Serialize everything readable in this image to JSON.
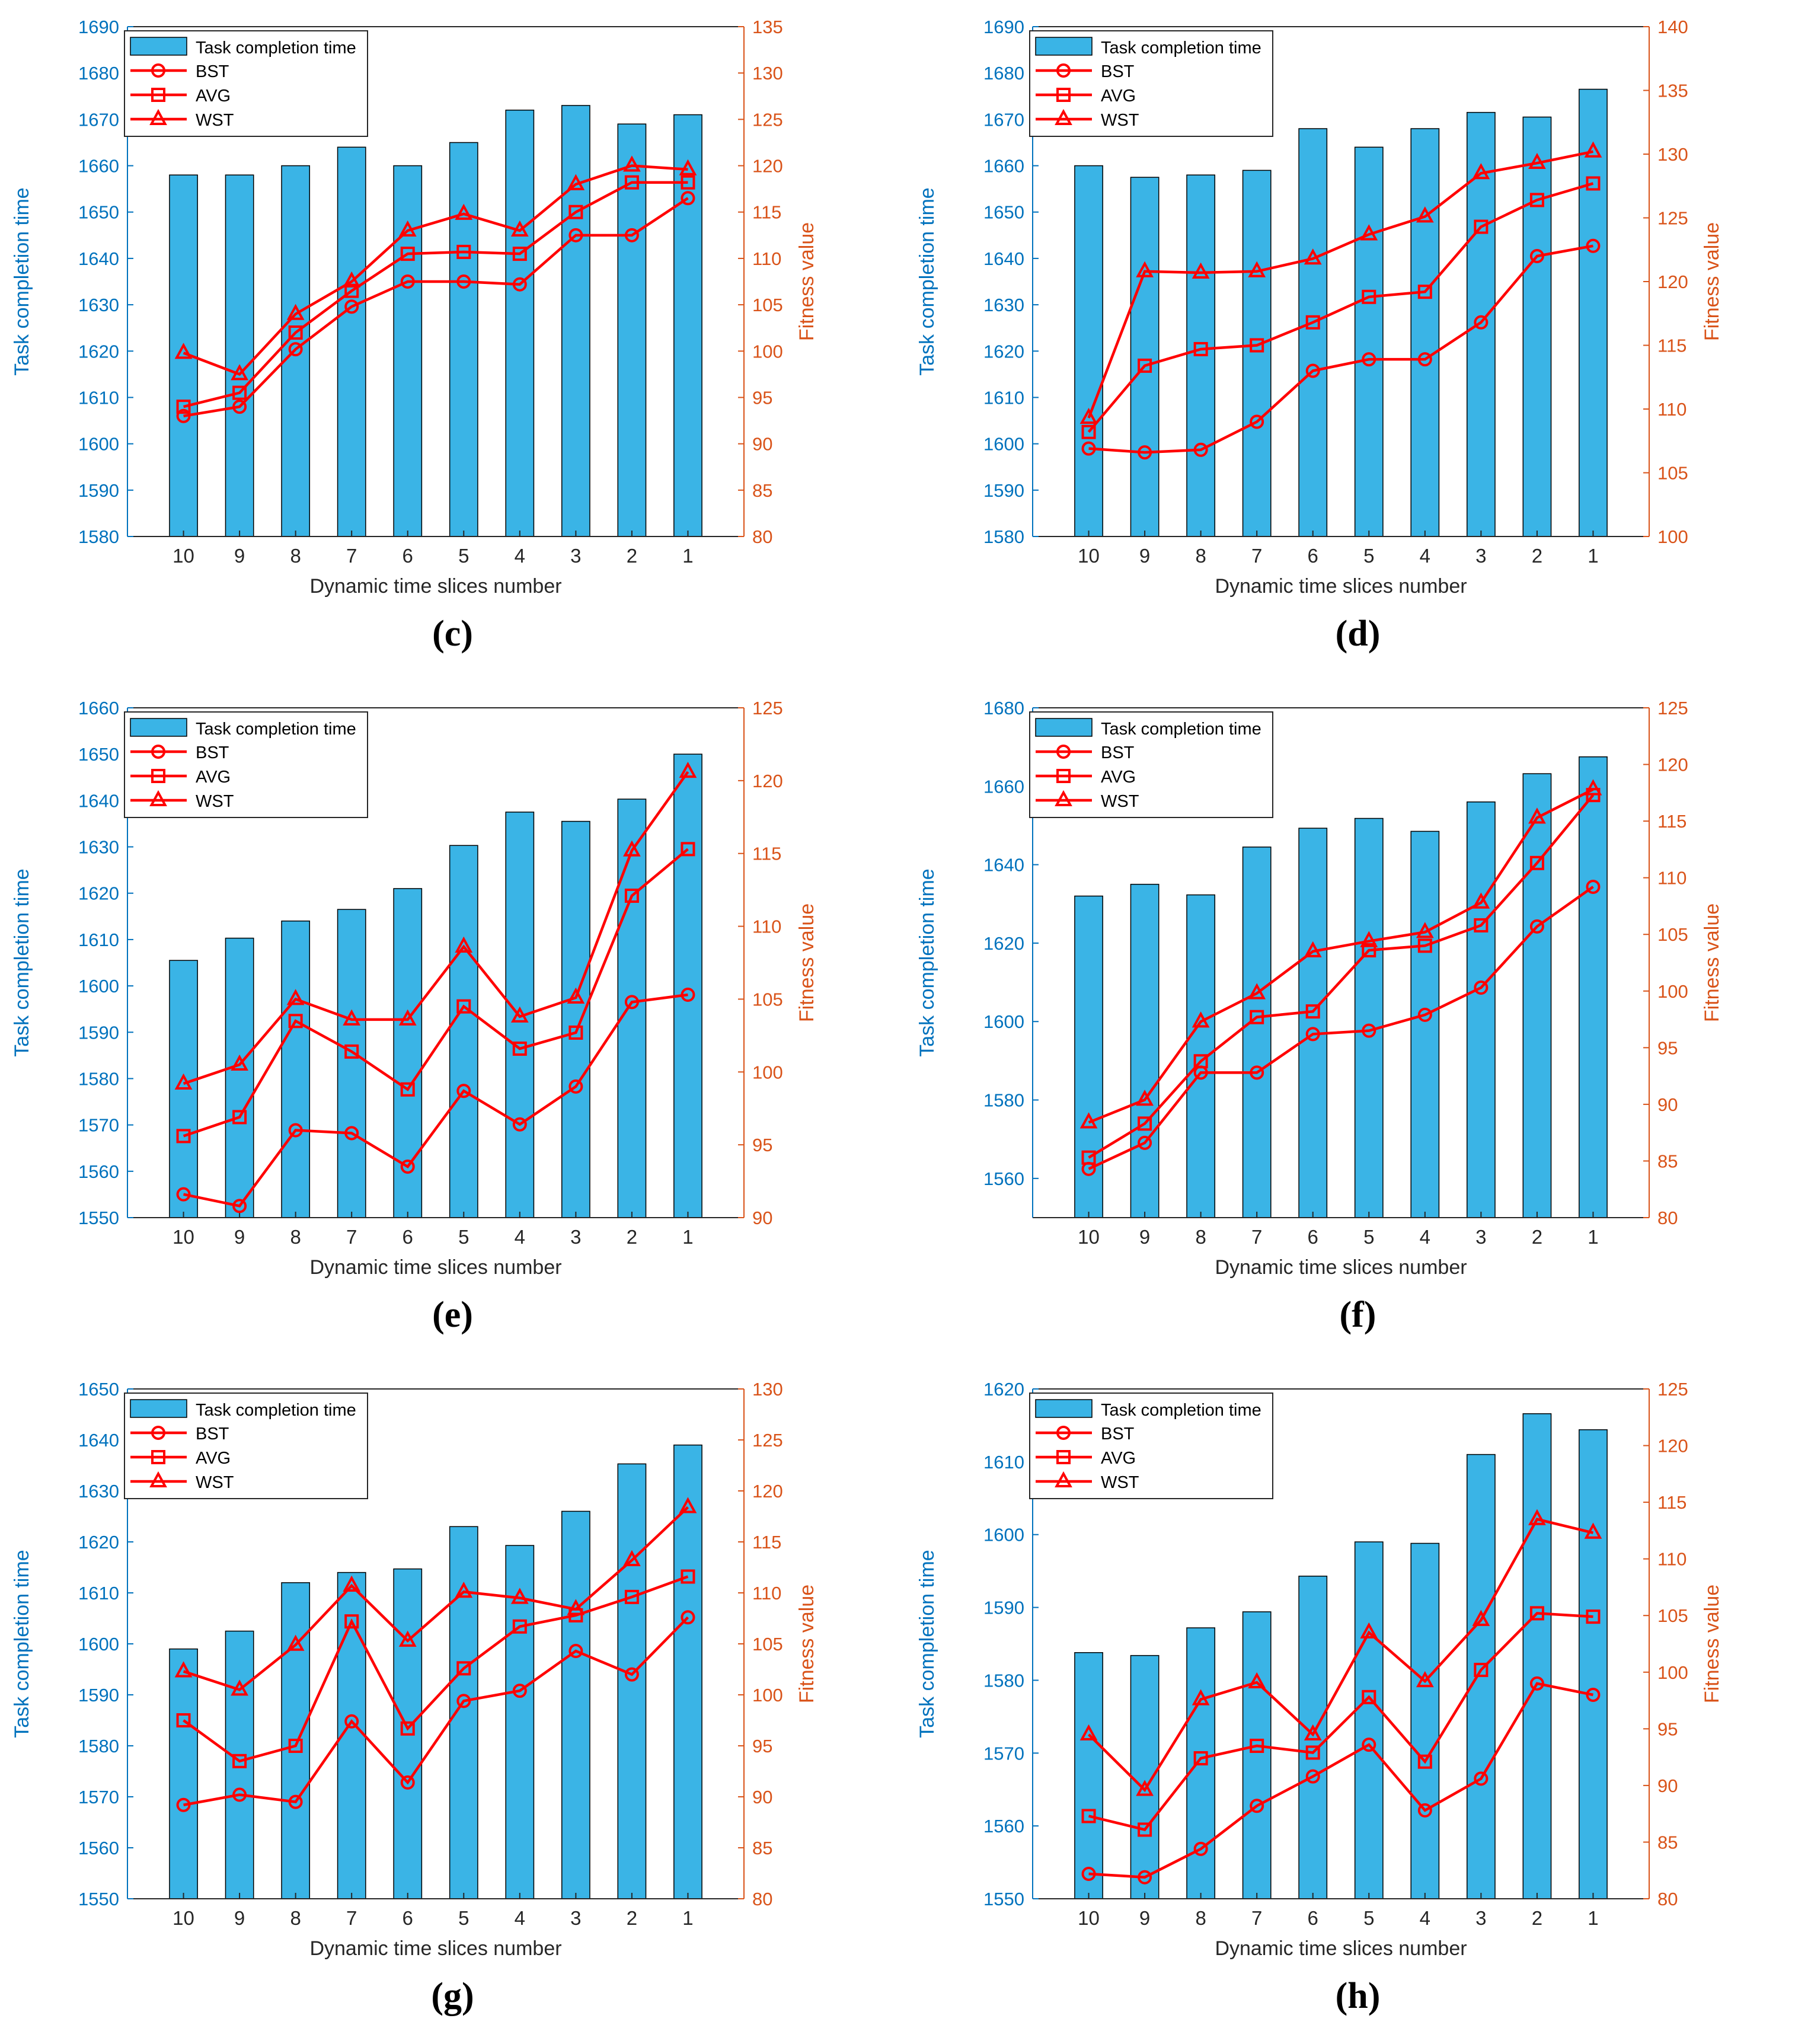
{
  "colors": {
    "bar": "#3ab4e6",
    "bar_edge": "#000000",
    "line": "#ff0000",
    "left_axis": "#0072bd",
    "right_axis": "#d95319"
  },
  "icons": {
    "BST": "circle-marker",
    "AVG": "square-marker",
    "WST": "triangle-marker"
  },
  "chart_data": [
    {
      "panel_label": "(c)",
      "type": "bar",
      "title": "",
      "xlabel": "Dynamic time slices number",
      "ylabel_left": "Task completion time",
      "ylabel_right": "Fitness value",
      "categories": [
        "10",
        "9",
        "8",
        "7",
        "6",
        "5",
        "4",
        "3",
        "2",
        "1"
      ],
      "ylim_left": [
        1580,
        1690
      ],
      "yticks_left": [
        1580,
        1590,
        1600,
        1610,
        1620,
        1630,
        1640,
        1650,
        1660,
        1670,
        1680,
        1690
      ],
      "ylim_right": [
        80,
        135
      ],
      "yticks_right": [
        80,
        85,
        90,
        95,
        100,
        105,
        110,
        115,
        120,
        125,
        130,
        135
      ],
      "legend": [
        "Task completion time",
        "BST",
        "AVG",
        "WST"
      ],
      "bars": {
        "name": "Task completion time",
        "values": [
          1658,
          1658,
          1660,
          1664,
          1660,
          1665,
          1672,
          1673,
          1669,
          1671
        ]
      },
      "series": [
        {
          "name": "BST",
          "marker": "circle",
          "values": [
            93,
            94,
            100.2,
            104.8,
            107.5,
            107.5,
            107.2,
            112.5,
            112.5,
            116.5
          ]
        },
        {
          "name": "AVG",
          "marker": "square",
          "values": [
            94,
            95.5,
            102,
            106.5,
            110.5,
            110.7,
            110.5,
            115,
            118.2,
            118.2
          ]
        },
        {
          "name": "WST",
          "marker": "triangle",
          "values": [
            99.8,
            97.5,
            104,
            107.5,
            113,
            114.8,
            113,
            118,
            120,
            119.6
          ]
        }
      ]
    },
    {
      "panel_label": "(d)",
      "type": "bar",
      "title": "",
      "xlabel": "Dynamic time slices number",
      "ylabel_left": "Task completion time",
      "ylabel_right": "Fitness value",
      "categories": [
        "10",
        "9",
        "8",
        "7",
        "6",
        "5",
        "4",
        "3",
        "2",
        "1"
      ],
      "ylim_left": [
        1580,
        1690
      ],
      "yticks_left": [
        1580,
        1590,
        1600,
        1610,
        1620,
        1630,
        1640,
        1650,
        1660,
        1670,
        1680,
        1690
      ],
      "ylim_right": [
        100,
        140
      ],
      "yticks_right": [
        100,
        105,
        110,
        115,
        120,
        125,
        130,
        135,
        140
      ],
      "legend": [
        "Task completion time",
        "BST",
        "AVG",
        "WST"
      ],
      "bars": {
        "name": "Task completion time",
        "values": [
          1660,
          1657.5,
          1658,
          1659,
          1668,
          1664,
          1668,
          1671.5,
          1670.5,
          1676.5
        ]
      },
      "series": [
        {
          "name": "BST",
          "marker": "circle",
          "values": [
            106.9,
            106.6,
            106.8,
            109,
            113,
            113.9,
            113.9,
            116.8,
            122,
            122.8
          ]
        },
        {
          "name": "AVG",
          "marker": "square",
          "values": [
            108.2,
            113.4,
            114.7,
            115,
            116.8,
            118.8,
            119.2,
            124.3,
            126.4,
            127.7
          ]
        },
        {
          "name": "WST",
          "marker": "triangle",
          "values": [
            109.3,
            120.8,
            120.7,
            120.8,
            121.8,
            123.7,
            125.1,
            128.5,
            129.3,
            130.2
          ]
        }
      ]
    },
    {
      "panel_label": "(e)",
      "type": "bar",
      "title": "",
      "xlabel": "Dynamic time slices number",
      "ylabel_left": "Task completion time",
      "ylabel_right": "Fitness value",
      "categories": [
        "10",
        "9",
        "8",
        "7",
        "6",
        "5",
        "4",
        "3",
        "2",
        "1"
      ],
      "ylim_left": [
        1550,
        1660
      ],
      "yticks_left": [
        1550,
        1560,
        1570,
        1580,
        1590,
        1600,
        1610,
        1620,
        1630,
        1640,
        1650,
        1660
      ],
      "ylim_right": [
        90,
        125
      ],
      "yticks_right": [
        90,
        95,
        100,
        105,
        110,
        115,
        120,
        125
      ],
      "legend": [
        "Task completion time",
        "BST",
        "AVG",
        "WST"
      ],
      "bars": {
        "name": "Task completion time",
        "values": [
          1605.5,
          1610.3,
          1614,
          1616.5,
          1621,
          1630.3,
          1637.5,
          1635.5,
          1640.3,
          1650
        ]
      },
      "series": [
        {
          "name": "BST",
          "marker": "circle",
          "values": [
            91.6,
            90.8,
            96,
            95.8,
            93.5,
            98.7,
            96.4,
            99,
            104.8,
            105.3
          ]
        },
        {
          "name": "AVG",
          "marker": "square",
          "values": [
            95.6,
            96.9,
            103.5,
            101.4,
            98.8,
            104.5,
            101.6,
            102.7,
            112.1,
            115.3
          ]
        },
        {
          "name": "WST",
          "marker": "triangle",
          "values": [
            99.2,
            100.5,
            105,
            103.6,
            103.6,
            108.6,
            103.8,
            105.1,
            115.2,
            120.6
          ]
        }
      ]
    },
    {
      "panel_label": "(f)",
      "type": "bar",
      "title": "",
      "xlabel": "Dynamic time slices number",
      "ylabel_left": "Task completion time",
      "ylabel_right": "Fitness value",
      "categories": [
        "10",
        "9",
        "8",
        "7",
        "6",
        "5",
        "4",
        "3",
        "2",
        "1"
      ],
      "ylim_left": [
        1550,
        1680
      ],
      "yticks_left": [
        1560,
        1580,
        1600,
        1620,
        1640,
        1660,
        1680
      ],
      "ylim_right": [
        80,
        125
      ],
      "yticks_right": [
        80,
        85,
        90,
        95,
        100,
        105,
        110,
        115,
        120,
        125
      ],
      "legend": [
        "Task completion time",
        "BST",
        "AVG",
        "WST"
      ],
      "bars": {
        "name": "Task completion time",
        "values": [
          1632,
          1635,
          1632.3,
          1644.5,
          1649.3,
          1651.8,
          1648.5,
          1656,
          1663.2,
          1667.5
        ]
      },
      "series": [
        {
          "name": "BST",
          "marker": "circle",
          "values": [
            84.3,
            86.6,
            92.8,
            92.8,
            96.2,
            96.5,
            97.9,
            100.3,
            105.7,
            109.2
          ]
        },
        {
          "name": "AVG",
          "marker": "square",
          "values": [
            85.3,
            88.3,
            93.8,
            97.7,
            98.2,
            103.6,
            104,
            105.8,
            111.3,
            117.3
          ]
        },
        {
          "name": "WST",
          "marker": "triangle",
          "values": [
            88.4,
            90.4,
            97.3,
            99.8,
            103.5,
            104.4,
            105.2,
            107.8,
            115.3,
            117.8
          ]
        }
      ]
    },
    {
      "panel_label": "(g)",
      "type": "bar",
      "title": "",
      "xlabel": "Dynamic time slices number",
      "ylabel_left": "Task completion time",
      "ylabel_right": "Fitness value",
      "categories": [
        "10",
        "9",
        "8",
        "7",
        "6",
        "5",
        "4",
        "3",
        "2",
        "1"
      ],
      "ylim_left": [
        1550,
        1650
      ],
      "yticks_left": [
        1550,
        1560,
        1570,
        1580,
        1590,
        1600,
        1610,
        1620,
        1630,
        1640,
        1650
      ],
      "ylim_right": [
        80,
        130
      ],
      "yticks_right": [
        80,
        85,
        90,
        95,
        100,
        105,
        110,
        115,
        120,
        125,
        130
      ],
      "legend": [
        "Task completion time",
        "BST",
        "AVG",
        "WST"
      ],
      "bars": {
        "name": "Task completion time",
        "values": [
          1599,
          1602.5,
          1612,
          1614,
          1614.7,
          1623,
          1619.3,
          1626,
          1635.3,
          1639
        ]
      },
      "series": [
        {
          "name": "BST",
          "marker": "circle",
          "values": [
            89.2,
            90.2,
            89.5,
            97.4,
            91.4,
            99.4,
            100.4,
            104.3,
            102,
            107.6
          ]
        },
        {
          "name": "AVG",
          "marker": "square",
          "values": [
            97.5,
            93.5,
            95,
            107.2,
            96.7,
            102.6,
            106.7,
            107.8,
            109.6,
            111.6
          ]
        },
        {
          "name": "WST",
          "marker": "triangle",
          "values": [
            102.3,
            100.5,
            104.9,
            110.7,
            105.3,
            110.1,
            109.5,
            108.4,
            113.2,
            118.4
          ]
        }
      ]
    },
    {
      "panel_label": "(h)",
      "type": "bar",
      "title": "",
      "xlabel": "Dynamic time slices number",
      "ylabel_left": "Task completion time",
      "ylabel_right": "Fitness value",
      "categories": [
        "10",
        "9",
        "8",
        "7",
        "6",
        "5",
        "4",
        "3",
        "2",
        "1"
      ],
      "ylim_left": [
        1550,
        1620
      ],
      "yticks_left": [
        1550,
        1560,
        1570,
        1580,
        1590,
        1600,
        1610,
        1620
      ],
      "ylim_right": [
        80,
        125
      ],
      "yticks_right": [
        80,
        85,
        90,
        95,
        100,
        105,
        110,
        115,
        120,
        125
      ],
      "legend": [
        "Task completion time",
        "BST",
        "AVG",
        "WST"
      ],
      "bars": {
        "name": "Task completion time",
        "values": [
          1583.8,
          1583.4,
          1587.2,
          1589.4,
          1594.3,
          1599,
          1598.8,
          1611,
          1616.6,
          1614.4
        ]
      },
      "series": [
        {
          "name": "BST",
          "marker": "circle",
          "values": [
            82.2,
            81.9,
            84.4,
            88.2,
            90.8,
            93.6,
            87.8,
            90.6,
            99,
            98
          ]
        },
        {
          "name": "AVG",
          "marker": "square",
          "values": [
            87.3,
            86.1,
            92.4,
            93.5,
            92.9,
            97.8,
            92.1,
            100.2,
            105.2,
            104.9
          ]
        },
        {
          "name": "WST",
          "marker": "triangle",
          "values": [
            94.5,
            89.6,
            97.6,
            99.1,
            94.5,
            103.5,
            99.2,
            104.6,
            113.5,
            112.3
          ]
        }
      ]
    }
  ]
}
